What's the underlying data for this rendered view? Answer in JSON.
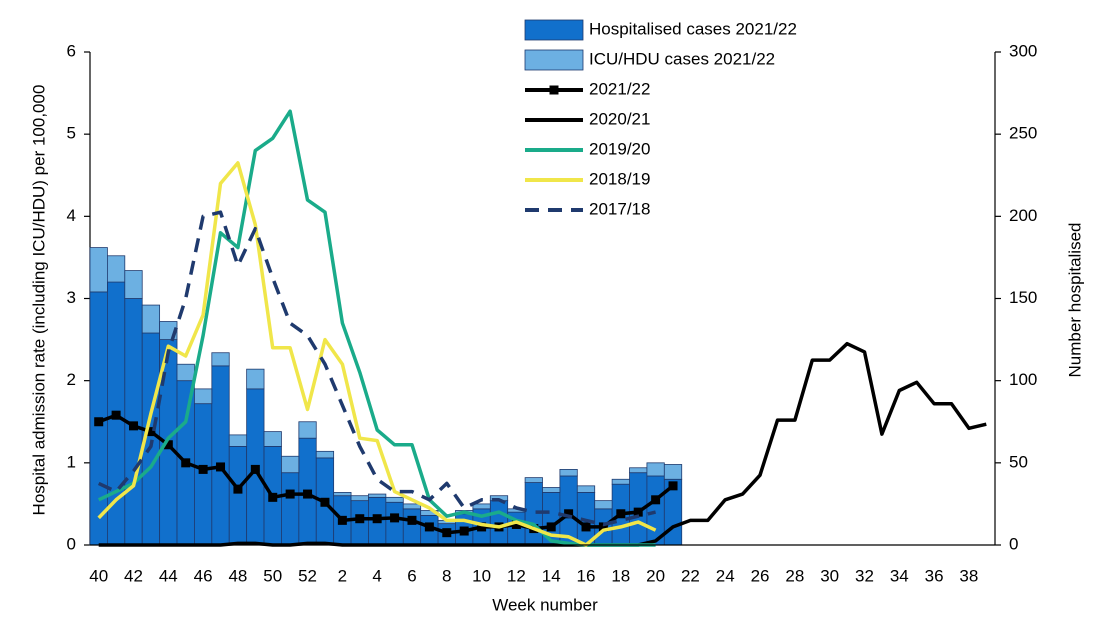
{
  "chart_data": {
    "type": "bar",
    "x_label": "Week number",
    "y_label": "Hospital admission rate (including ICU/HDU) per 100,000",
    "y2_label": "Number hospitalised",
    "categories": [
      "40",
      null,
      "42",
      null,
      "44",
      null,
      "46",
      null,
      "48",
      null,
      "50",
      null,
      "52",
      null,
      "2",
      null,
      "4",
      null,
      "6",
      null,
      "8",
      null,
      "10",
      null,
      "12",
      null,
      "14",
      null,
      "16",
      null,
      "18",
      null,
      "20",
      null,
      "22",
      null,
      "24",
      null,
      "26",
      null,
      "28",
      null,
      "30",
      null,
      "32",
      null,
      "34",
      null,
      "36",
      null,
      "38",
      null
    ],
    "ylim": [
      0,
      6
    ],
    "yticks": [
      0,
      1,
      2,
      3,
      4,
      5,
      6
    ],
    "y2lim": [
      0,
      300
    ],
    "y2ticks": [
      0,
      50,
      100,
      150,
      200,
      250,
      300
    ],
    "legend": "top",
    "series": [
      {
        "name": "Hospitalised cases 2021/22",
        "type": "bar",
        "axis": "y2",
        "color": "#1170cc",
        "values": [
          154,
          160,
          150,
          129,
          125,
          100,
          86,
          109,
          60,
          95,
          60,
          44,
          65,
          53,
          30,
          27,
          29,
          26,
          22,
          18,
          13,
          19,
          22,
          27,
          20,
          38,
          32,
          42,
          32,
          22,
          37,
          44,
          42,
          40,
          null,
          null,
          null,
          null,
          null,
          null,
          null,
          null,
          null,
          null,
          null,
          null,
          null,
          null,
          null,
          null,
          null,
          null
        ]
      },
      {
        "name": "ICU/HDU cases 2021/22",
        "type": "bar",
        "axis": "y2",
        "color": "#6cb0e2",
        "values": [
          27,
          16,
          17,
          17,
          11,
          10,
          9,
          8,
          7,
          12,
          9,
          10,
          10,
          4,
          2,
          3,
          2,
          3,
          3,
          3,
          2,
          2,
          3,
          3,
          2,
          3,
          3,
          4,
          4,
          5,
          3,
          3,
          8,
          9,
          null,
          null,
          null,
          null,
          null,
          null,
          null,
          null,
          null,
          null,
          null,
          null,
          null,
          null,
          null,
          null,
          null,
          null
        ]
      },
      {
        "name": "2021/22",
        "type": "line",
        "color": "#000000",
        "marker": "square",
        "dash": false,
        "values": [
          1.5,
          1.58,
          1.45,
          1.38,
          1.22,
          1.0,
          0.92,
          0.95,
          0.68,
          0.92,
          0.58,
          0.62,
          0.62,
          0.52,
          0.3,
          0.32,
          0.32,
          0.33,
          0.3,
          0.22,
          0.15,
          0.17,
          0.22,
          0.22,
          0.25,
          0.2,
          0.22,
          0.38,
          0.22,
          0.22,
          0.38,
          0.4,
          0.55,
          0.72,
          null,
          null,
          null,
          null,
          null,
          null,
          null,
          null,
          null,
          null,
          null,
          null,
          null,
          null,
          null,
          null,
          null,
          null
        ]
      },
      {
        "name": "2020/21",
        "type": "line",
        "color": "#000000",
        "marker": "none",
        "dash": false,
        "values": [
          0,
          0,
          0,
          0,
          0,
          0,
          0,
          0,
          0.02,
          0.02,
          0,
          0,
          0.02,
          0.02,
          0,
          0,
          0,
          0,
          0,
          0,
          0,
          0,
          0,
          0,
          0,
          0,
          0,
          0,
          0,
          0,
          0,
          0,
          0.05,
          0.22,
          0.3,
          0.3,
          0.55,
          0.62,
          0.85,
          1.52,
          1.52,
          2.25,
          2.25,
          2.45,
          2.35,
          1.35,
          1.88,
          1.98,
          1.72,
          1.72,
          1.42,
          1.47
        ]
      },
      {
        "name": "2019/20",
        "type": "line",
        "color": "#1aab8a",
        "marker": "none",
        "dash": false,
        "values": [
          0.55,
          0.65,
          0.75,
          0.95,
          1.3,
          1.5,
          2.55,
          3.8,
          3.62,
          4.8,
          4.95,
          5.28,
          4.2,
          4.05,
          2.7,
          2.1,
          1.4,
          1.22,
          1.22,
          0.55,
          0.35,
          0.4,
          0.35,
          0.4,
          0.3,
          0.25,
          0.05,
          0.02,
          0,
          0,
          0,
          0,
          0,
          null,
          null,
          null,
          null,
          null,
          null,
          null,
          null,
          null,
          null,
          null,
          null,
          null,
          null,
          null,
          null,
          null,
          null,
          null
        ]
      },
      {
        "name": "2018/19",
        "type": "line",
        "color": "#f0e64a",
        "marker": "none",
        "dash": false,
        "values": [
          0.33,
          0.55,
          0.72,
          1.6,
          2.42,
          2.3,
          2.8,
          4.4,
          4.65,
          3.9,
          2.4,
          2.4,
          1.65,
          2.5,
          2.2,
          1.3,
          1.27,
          0.65,
          0.55,
          0.45,
          0.3,
          0.3,
          0.25,
          0.22,
          0.28,
          0.2,
          0.12,
          0.1,
          0,
          0.18,
          0.22,
          0.28,
          0.18,
          null,
          null,
          null,
          null,
          null,
          null,
          null,
          null,
          null,
          null,
          null,
          null,
          null,
          null,
          null,
          null,
          null,
          null,
          null
        ]
      },
      {
        "name": "2017/18",
        "type": "line",
        "color": "#1f3a6e",
        "marker": "none",
        "dash": true,
        "values": [
          0.75,
          0.65,
          0.9,
          1.2,
          2.35,
          3.0,
          4.0,
          4.05,
          3.4,
          3.85,
          3.25,
          2.7,
          2.55,
          2.2,
          1.7,
          1.2,
          0.8,
          0.65,
          0.65,
          0.55,
          0.75,
          0.45,
          0.55,
          0.55,
          0.45,
          0.4,
          0.4,
          0.35,
          0.3,
          0.25,
          0.3,
          0.35,
          0.4,
          null,
          null,
          null,
          null,
          null,
          null,
          null,
          null,
          null,
          null,
          null,
          null,
          null,
          null,
          null,
          null,
          null,
          null,
          null
        ]
      }
    ]
  }
}
